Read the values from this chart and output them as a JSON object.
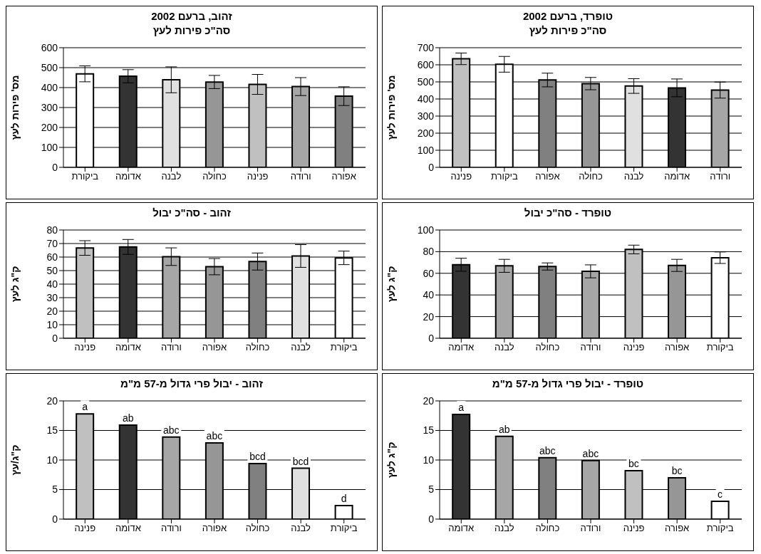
{
  "chart_data": [
    {
      "type": "bar",
      "title": "זהוב, ברעם 2002",
      "subtitle": "סה\"כ פירות לעץ",
      "ylabel": "מס' פירות לעץ",
      "categories": [
        "ביקורת",
        "אדומה",
        "לבנה",
        "כחולה",
        "פנינה",
        "ורודה",
        "אפורה"
      ],
      "values": [
        469,
        457,
        439,
        428,
        416,
        405,
        357
      ],
      "errors": [
        40,
        33,
        65,
        33,
        50,
        45,
        47
      ],
      "colors": [
        "#ffffff",
        "#333333",
        "#e0e0e0",
        "#969696",
        "#c0c0c0",
        "#a6a6a6",
        "#808080"
      ],
      "ylim": [
        0,
        600
      ],
      "yticks": [
        0,
        100,
        200,
        300,
        400,
        500,
        600
      ],
      "grid": "y"
    },
    {
      "type": "bar",
      "title": "טופרד, ברעם 2002",
      "subtitle": "סה\"כ פירות לעץ",
      "ylabel": "מס' פירות לעץ",
      "categories": [
        "פנינה",
        "ביקורת",
        "אפורה",
        "כחולה",
        "לבנה",
        "אדומה",
        "ורודה"
      ],
      "values": [
        635,
        603,
        511,
        490,
        476,
        465,
        452
      ],
      "errors": [
        34,
        46,
        40,
        36,
        43,
        52,
        47
      ],
      "colors": [
        "#c0c0c0",
        "#ffffff",
        "#808080",
        "#969696",
        "#e0e0e0",
        "#333333",
        "#a6a6a6"
      ],
      "ylim": [
        0,
        700
      ],
      "yticks": [
        0,
        100,
        200,
        300,
        400,
        500,
        600,
        700
      ],
      "grid": "y"
    },
    {
      "type": "bar",
      "title": "זהוב - סה\"כ יבול",
      "ylabel": "ק\"ג לעץ",
      "categories": [
        "פנינה",
        "אדומה",
        "ורודה",
        "אפורה",
        "כחולה",
        "לבנה",
        "ביקורת"
      ],
      "values": [
        66.7,
        67.5,
        60.3,
        52.9,
        56.7,
        60.8,
        59.4
      ],
      "errors": [
        5.4,
        5.5,
        6.5,
        6,
        6.3,
        8.4,
        5
      ],
      "colors": [
        "#c0c0c0",
        "#333333",
        "#a6a6a6",
        "#969696",
        "#808080",
        "#e0e0e0",
        "#ffffff"
      ],
      "ylim": [
        0,
        80
      ],
      "yticks": [
        0,
        10,
        20,
        30,
        40,
        50,
        60,
        70,
        80
      ],
      "grid": "y"
    },
    {
      "type": "bar",
      "title": "טופרד - סה\"כ יבול",
      "ylabel": "ק\"ג לעץ",
      "categories": [
        "אדומה",
        "לבנה",
        "כחולה",
        "ורודה",
        "פנינה",
        "אפורה",
        "ביקורת"
      ],
      "values": [
        67.9,
        66.9,
        66.3,
        61.8,
        82,
        67.3,
        74.4
      ],
      "errors": [
        6,
        6,
        3.3,
        6,
        4,
        5.6,
        5.3
      ],
      "colors": [
        "#333333",
        "#a6a6a6",
        "#808080",
        "#a6a6a6",
        "#c0c0c0",
        "#969696",
        "#ffffff"
      ],
      "ylim": [
        0,
        100
      ],
      "yticks": [
        0,
        20,
        40,
        60,
        80,
        100
      ],
      "grid": "y"
    },
    {
      "type": "bar",
      "title": "זהוב - יבול פרי גדול מ-57 מ\"מ",
      "ylabel": "ק\"ג/עץ",
      "categories": [
        "פנינה",
        "אדומה",
        "ורודה",
        "אפורה",
        "כחולה",
        "לבנה",
        "ביקורת"
      ],
      "values": [
        17.8,
        15.9,
        13.9,
        12.9,
        9.4,
        8.6,
        2.3
      ],
      "value_labels": [
        "a",
        "ab",
        "abc",
        "abc",
        "bcd",
        "bcd",
        "d"
      ],
      "colors": [
        "#c0c0c0",
        "#333333",
        "#a6a6a6",
        "#969696",
        "#808080",
        "#e0e0e0",
        "#ffffff"
      ],
      "ylim": [
        0,
        20
      ],
      "yticks": [
        0,
        5,
        10,
        15,
        20
      ],
      "grid": "y"
    },
    {
      "type": "bar",
      "title": "טופרד - יבול פרי גדול מ-57 מ\"מ",
      "ylabel": "ק\"ג לעץ",
      "categories": [
        "אדומה",
        "לבנה",
        "כחולה",
        "ורודה",
        "פנינה",
        "אפורה",
        "ביקורת"
      ],
      "values": [
        17.7,
        14.0,
        10.4,
        9.9,
        8.2,
        7.0,
        3.0
      ],
      "value_labels": [
        "a",
        "ab",
        "abc",
        "abc",
        "bc",
        "bc",
        "c"
      ],
      "colors": [
        "#333333",
        "#a6a6a6",
        "#808080",
        "#a6a6a6",
        "#c0c0c0",
        "#969696",
        "#ffffff"
      ],
      "ylim": [
        0,
        20
      ],
      "yticks": [
        0,
        5,
        10,
        15,
        20
      ],
      "grid": "y"
    }
  ]
}
